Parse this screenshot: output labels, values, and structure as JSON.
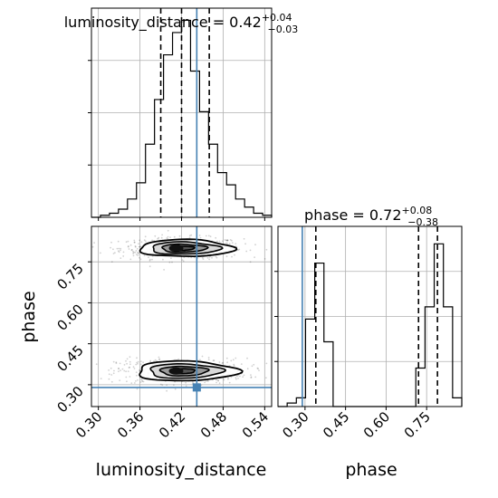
{
  "chart_data": {
    "type": "corner",
    "truth_color": "#4682b4",
    "panels": [
      {
        "panel": "luminosity_distance-hist",
        "type": "histogram",
        "title": {
          "param": "luminosity_distance",
          "median": "0.42",
          "plus": "+0.04",
          "minus": "−0.03"
        },
        "title_prefix": "luminosity_distance = ",
        "xlim": [
          0.29,
          0.55
        ],
        "bin_edges": [
          0.29,
          0.303,
          0.316,
          0.329,
          0.342,
          0.355,
          0.368,
          0.381,
          0.394,
          0.407,
          0.42,
          0.433,
          0.446,
          0.459,
          0.472,
          0.485,
          0.498,
          0.511,
          0.524,
          0.537,
          0.55
        ],
        "counts": [
          0,
          1,
          2,
          4,
          9,
          17,
          36,
          58,
          80,
          91,
          97,
          72,
          52,
          36,
          22,
          16,
          9,
          5,
          2,
          1
        ],
        "ymax": 103,
        "quantiles": [
          0.39,
          0.42,
          0.46
        ],
        "truth": 0.442
      },
      {
        "panel": "phase-hist",
        "type": "histogram",
        "title": {
          "param": "phase",
          "median": "0.72",
          "plus": "+0.08",
          "minus": "−0.38"
        },
        "title_prefix": "phase = ",
        "xlim": [
          0.2,
          0.88
        ],
        "bin_edges": [
          0.2,
          0.234,
          0.268,
          0.302,
          0.336,
          0.37,
          0.404,
          0.438,
          0.472,
          0.506,
          0.54,
          0.574,
          0.608,
          0.642,
          0.676,
          0.71,
          0.744,
          0.778,
          0.812,
          0.846,
          0.88
        ],
        "counts": [
          0,
          2,
          5,
          50,
          82,
          37,
          0,
          0,
          0,
          0,
          0,
          0,
          0,
          0,
          0,
          22,
          57,
          93,
          57,
          5
        ],
        "ymax": 103,
        "quantiles": [
          0.34,
          0.72,
          0.79
        ],
        "truth": 0.29
      },
      {
        "panel": "joint",
        "type": "2d-density",
        "x_param": "luminosity_distance",
        "y_param": "phase",
        "xlim": [
          0.29,
          0.55
        ],
        "ylim": [
          0.22,
          0.88
        ],
        "modes": [
          {
            "cx": 0.42,
            "cy": 0.8,
            "sx": 0.034,
            "sy": 0.028,
            "weight": 0.5
          },
          {
            "cx": 0.42,
            "cy": 0.35,
            "sx": 0.036,
            "sy": 0.033,
            "weight": 0.5
          }
        ],
        "truth": {
          "x": 0.442,
          "y": 0.29
        }
      }
    ],
    "x_ticks": {
      "luminosity_distance": [
        "0.30",
        "0.36",
        "0.42",
        "0.48",
        "0.54"
      ],
      "phase": [
        "0.30",
        "0.45",
        "0.60",
        "0.75"
      ]
    },
    "y_ticks": {
      "phase": [
        "0.30",
        "0.45",
        "0.60",
        "0.75"
      ]
    },
    "xlabel_left": "luminosity_distance",
    "xlabel_right": "phase",
    "ylabel": "phase",
    "grid": true
  }
}
